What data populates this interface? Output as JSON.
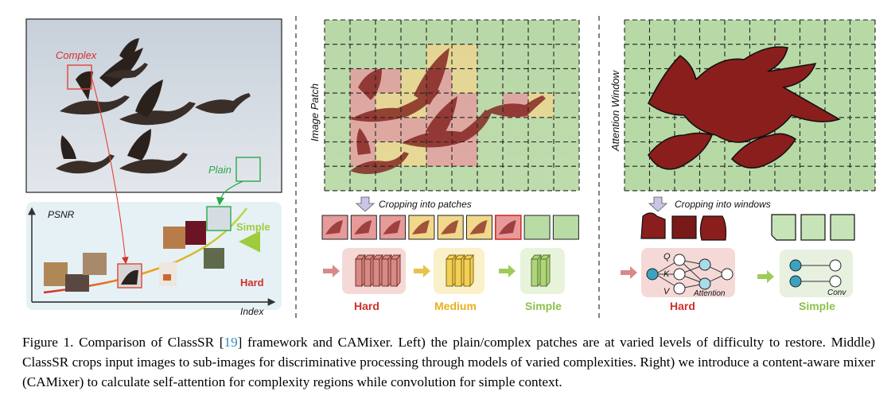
{
  "left": {
    "complex_label": "Complex",
    "plain_label": "Plain",
    "psnr_label": "PSNR",
    "index_label": "Index",
    "simple_label": "Simple",
    "hard_label": "Hard"
  },
  "middle": {
    "axis_label": "Image Patch",
    "crop_label": "Cropping into patches",
    "hard_label": "Hard",
    "medium_label": "Medium",
    "simple_label": "Simple"
  },
  "right": {
    "axis_label": "Attention Window",
    "crop_label": "Cropping into windows",
    "hard_label": "Hard",
    "simple_label": "Simple",
    "q_label": "Q",
    "k_label": "K",
    "v_label": "V",
    "attention_label": "Attention",
    "conv_label": "Conv"
  },
  "caption": {
    "prefix": "Figure 1.  Comparison of ClassSR [",
    "ref": "19",
    "suffix": "] framework and CAMixer.  Left) the plain/complex patches are at varied levels of difficulty to restore. Middle) ClassSR crops input images to sub-images for discriminative processing through models of varied complexities. Right) we introduce a content-aware mixer (CAMixer) to calculate self-attention for complexity regions while convolution for simple context."
  },
  "colors": {
    "hard": "#d0302a",
    "medium": "#e8b020",
    "simple": "#8ec04a",
    "plain_green": "#2ba84a",
    "hard_tile": "#e79a9a",
    "medium_tile": "#f1d88a",
    "simple_tile": "#b9dca6"
  }
}
